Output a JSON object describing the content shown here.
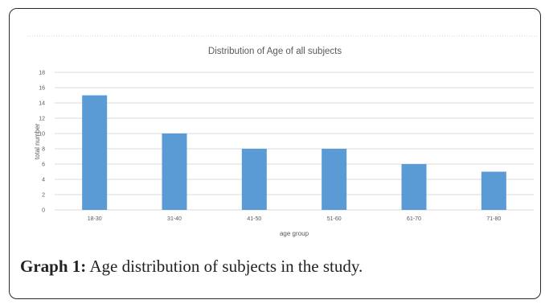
{
  "caption": {
    "label": "Graph 1:",
    "text": " Age distribution of subjects in the study."
  },
  "chart_data": {
    "type": "bar",
    "title": "Distribution of Age of all subjects",
    "xlabel": "age group",
    "ylabel": "total number",
    "categories": [
      "18-30",
      "31-40",
      "41-50",
      "51-60",
      "61-70",
      "71-80"
    ],
    "values": [
      15,
      10,
      8,
      8,
      6,
      5
    ],
    "ylim": [
      0,
      18
    ],
    "yticks": [
      0,
      2,
      4,
      6,
      8,
      10,
      12,
      14,
      16,
      18
    ],
    "grid": true,
    "legend": "none",
    "bar_color": "#5b9bd5",
    "grid_color": "#d9d9d9"
  }
}
